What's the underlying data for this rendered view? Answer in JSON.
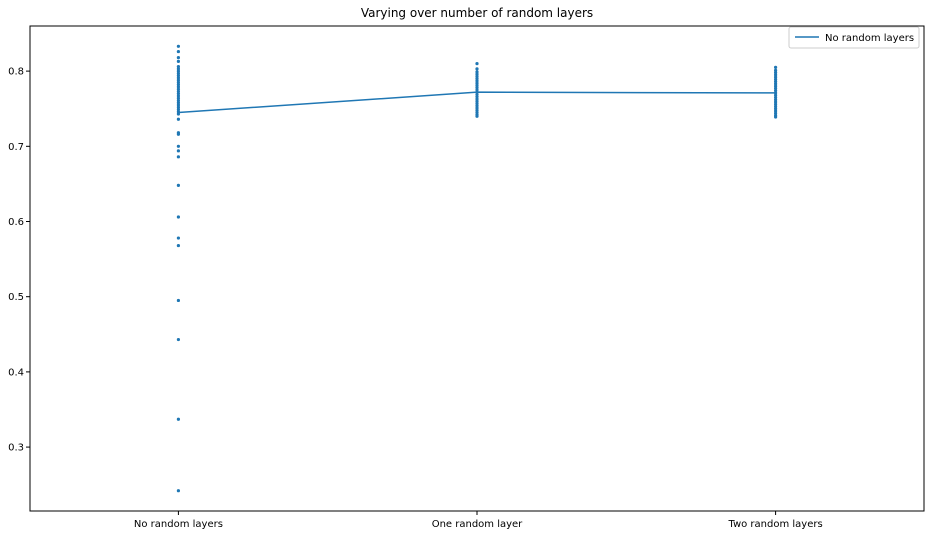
{
  "chart_data": {
    "type": "scatter",
    "title": "Varying over number of random layers",
    "xlabel": "",
    "ylabel": "",
    "categories": [
      "No random layers",
      "One random layer",
      "Two random layers"
    ],
    "ylim": [
      0.215,
      0.86
    ],
    "yticks": [
      "0.3",
      "0.4",
      "0.5",
      "0.6",
      "0.7",
      "0.8"
    ],
    "grid": false,
    "legend": {
      "placement": "top-right",
      "entries": [
        "No random layers"
      ]
    },
    "colors": {
      "series": "#1f77b4",
      "axis": "#000000"
    },
    "series": [
      {
        "name": "No random layers",
        "kind": "line",
        "values": [
          0.745,
          0.772,
          0.771
        ]
      }
    ],
    "scatter_points": [
      {
        "category": "No random layers",
        "values": [
          0.833,
          0.826,
          0.818,
          0.813,
          0.806,
          0.803,
          0.8,
          0.797,
          0.794,
          0.791,
          0.788,
          0.785,
          0.782,
          0.779,
          0.776,
          0.773,
          0.77,
          0.767,
          0.764,
          0.761,
          0.758,
          0.755,
          0.752,
          0.749,
          0.746,
          0.743,
          0.736,
          0.718,
          0.716,
          0.7,
          0.694,
          0.686,
          0.648,
          0.606,
          0.578,
          0.568,
          0.495,
          0.443,
          0.337,
          0.242
        ]
      },
      {
        "category": "One random layer",
        "values": [
          0.81,
          0.803,
          0.799,
          0.796,
          0.793,
          0.79,
          0.787,
          0.784,
          0.781,
          0.778,
          0.775,
          0.772,
          0.769,
          0.766,
          0.763,
          0.76,
          0.757,
          0.754,
          0.751,
          0.748,
          0.745,
          0.742,
          0.74
        ]
      },
      {
        "category": "Two random layers",
        "values": [
          0.805,
          0.801,
          0.798,
          0.795,
          0.792,
          0.789,
          0.786,
          0.783,
          0.78,
          0.777,
          0.774,
          0.771,
          0.768,
          0.765,
          0.762,
          0.759,
          0.756,
          0.753,
          0.75,
          0.747,
          0.744,
          0.741,
          0.739
        ]
      }
    ]
  }
}
